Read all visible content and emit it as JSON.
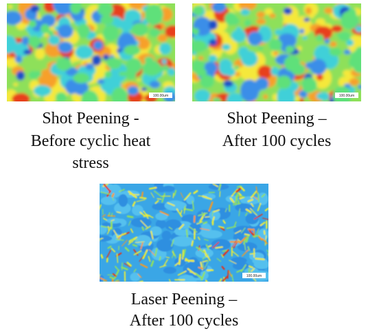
{
  "figures": [
    {
      "caption": [
        "Shot Peening -",
        "Before cyclic heat",
        "stress"
      ],
      "scale_label": "100.00um"
    },
    {
      "caption": [
        "Shot Peening –",
        "After 100 cycles"
      ],
      "scale_label": "100.00um"
    },
    {
      "caption": [
        "Laser Peening –",
        "After 100 cycles"
      ],
      "scale_label": "100.00um"
    }
  ]
}
